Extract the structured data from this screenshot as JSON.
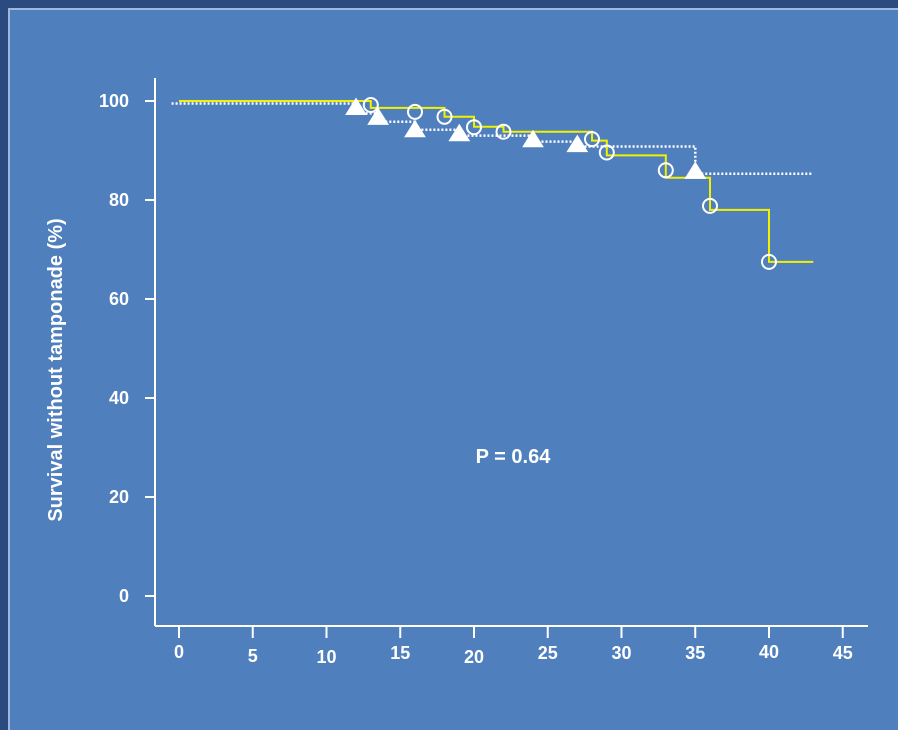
{
  "colors": {
    "page_background": "#4f7fbd",
    "outer_background": "#2a4a80",
    "series_solid": "#f2f200",
    "series_dotted": "#ffffff",
    "axis": "#ffffff",
    "text": "#ffffff"
  },
  "chart_data": {
    "type": "line",
    "subtype": "kaplan-meier step",
    "title": "",
    "xlabel": "",
    "ylabel": "Survival without tamponade (%)",
    "xlim": [
      -1.5,
      47.5
    ],
    "ylim": [
      -6,
      105
    ],
    "x_ticks": [
      0,
      5,
      10,
      15,
      20,
      25,
      30,
      35,
      40,
      45
    ],
    "y_ticks": [
      0,
      20,
      40,
      60,
      80,
      100
    ],
    "grid": false,
    "legend": "none",
    "annotation": "P = 0.64",
    "series": [
      {
        "line_style": "solid",
        "color": "#f2f200",
        "steps": [
          [
            0,
            100
          ],
          [
            13,
            100
          ],
          [
            13,
            98.6
          ],
          [
            18,
            98.6
          ],
          [
            18,
            96.8
          ],
          [
            20,
            96.8
          ],
          [
            20,
            94.8
          ],
          [
            22,
            94.8
          ],
          [
            22,
            93.8
          ],
          [
            28,
            93.8
          ],
          [
            28,
            92
          ],
          [
            29,
            92
          ],
          [
            29,
            89
          ],
          [
            33,
            89
          ],
          [
            33,
            84.5
          ],
          [
            36,
            84.5
          ],
          [
            36,
            78
          ],
          [
            40,
            78
          ],
          [
            40,
            67.5
          ],
          [
            43,
            67.5
          ]
        ],
        "censored_marker": "open-circle",
        "censored": [
          [
            13,
            99.2
          ],
          [
            16,
            97.8
          ],
          [
            18,
            96.8
          ],
          [
            20,
            94.7
          ],
          [
            22,
            93.8
          ],
          [
            28,
            92.3
          ],
          [
            29,
            89.6
          ],
          [
            33,
            86
          ],
          [
            36,
            78.8
          ],
          [
            40,
            67.5
          ]
        ]
      },
      {
        "line_style": "dotted",
        "color": "#ffffff",
        "steps": [
          [
            -0.5,
            99.5
          ],
          [
            12,
            99.5
          ],
          [
            12,
            97.5
          ],
          [
            13.5,
            97.5
          ],
          [
            13.5,
            95.8
          ],
          [
            16,
            95.8
          ],
          [
            16,
            94.2
          ],
          [
            19,
            94.2
          ],
          [
            19,
            93
          ],
          [
            24,
            93
          ],
          [
            24,
            91.8
          ],
          [
            27,
            91.8
          ],
          [
            27,
            90.8
          ],
          [
            35,
            90.8
          ],
          [
            35,
            85.3
          ],
          [
            43,
            85.3
          ]
        ],
        "censored_marker": "filled-triangle",
        "censored": [
          [
            12,
            98.5
          ],
          [
            13.5,
            96.5
          ],
          [
            16,
            94
          ],
          [
            19,
            93.2
          ],
          [
            24,
            92
          ],
          [
            27,
            91
          ],
          [
            35,
            85.6
          ]
        ]
      }
    ]
  }
}
